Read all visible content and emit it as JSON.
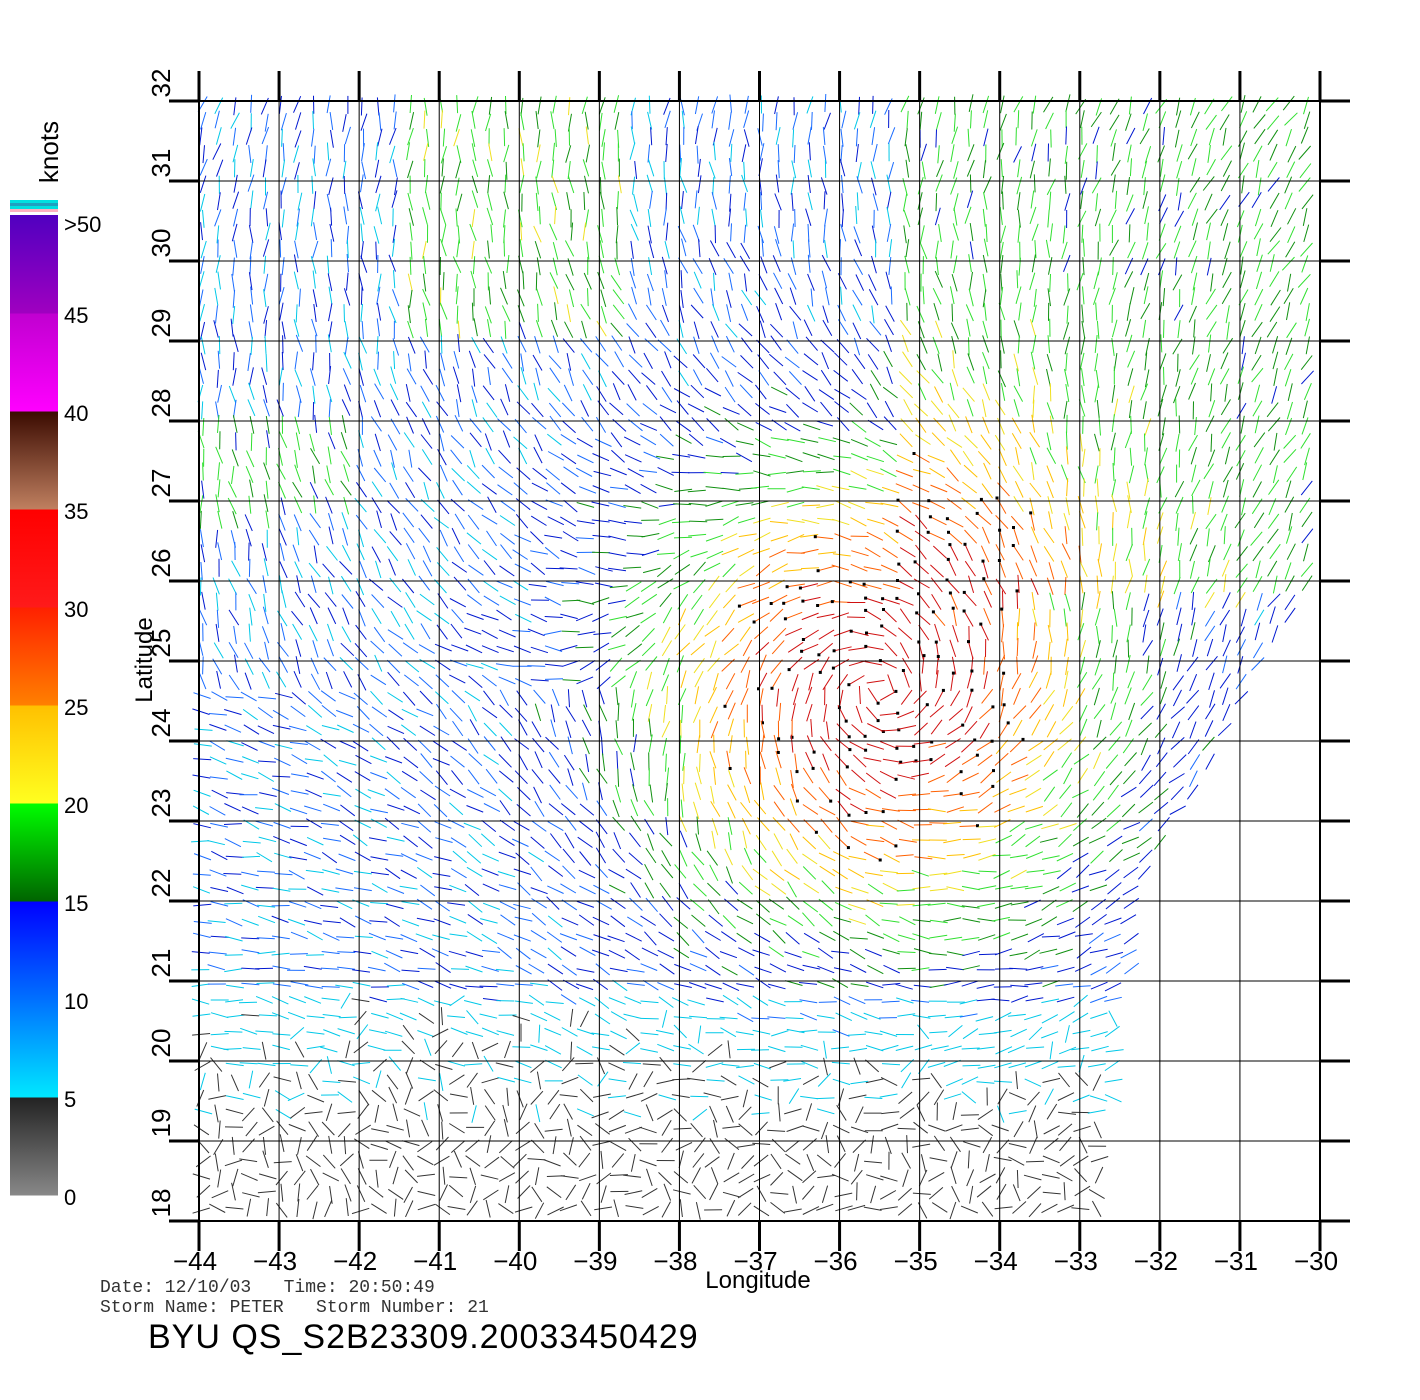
{
  "map": {
    "xlabel": "Longitude",
    "ylabel": "Latitude",
    "lon_range": [
      -44,
      -30
    ],
    "lat_range": [
      18,
      32
    ],
    "lon_ticks": [
      "−44",
      "−43",
      "−42",
      "−41",
      "−40",
      "−39",
      "−38",
      "−37",
      "−36",
      "−35",
      "−34",
      "−33",
      "−32",
      "−31",
      "−30"
    ],
    "lat_ticks": [
      "18",
      "19",
      "20",
      "21",
      "22",
      "23",
      "24",
      "25",
      "26",
      "27",
      "28",
      "29",
      "30",
      "31",
      "32"
    ],
    "grid": true
  },
  "colorbar": {
    "unit": "knots",
    "tick_labels": [
      "0",
      "5",
      "10",
      "15",
      "20",
      "25",
      "30",
      "35",
      "40",
      "45",
      ">50"
    ],
    "bands": [
      {
        "from": 0,
        "to": 5,
        "colors": [
          "#888888",
          "#222222"
        ]
      },
      {
        "from": 5,
        "to": 10,
        "colors": [
          "#00e8ff",
          "#0070ff"
        ]
      },
      {
        "from": 10,
        "to": 15,
        "colors": [
          "#0070ff",
          "#0000ff"
        ]
      },
      {
        "from": 15,
        "to": 20,
        "colors": [
          "#006400",
          "#00ff00"
        ]
      },
      {
        "from": 20,
        "to": 25,
        "colors": [
          "#ffff20",
          "#ffc000"
        ]
      },
      {
        "from": 25,
        "to": 30,
        "colors": [
          "#ff8000",
          "#ff2000"
        ]
      },
      {
        "from": 30,
        "to": 35,
        "colors": [
          "#ff1a1a",
          "#ff0000"
        ]
      },
      {
        "from": 35,
        "to": 40,
        "colors": [
          "#c08060",
          "#3a0a00"
        ]
      },
      {
        "from": 40,
        "to": 45,
        "colors": [
          "#ff00ff",
          "#c000d0"
        ]
      },
      {
        "from": 45,
        "to": 50,
        "colors": [
          "#a000c0",
          "#5000c0"
        ]
      }
    ],
    "top_stripes": [
      "#ffb0c0",
      "#00e0e0",
      "#20a0c0",
      "#00e0e0"
    ]
  },
  "info": {
    "line1": "Date: 12/10/03   Time: 20:50:49",
    "line2": "Storm Name: PETER   Storm Number: 21",
    "product": "BYU QS_S2B23309.20033450429"
  }
}
